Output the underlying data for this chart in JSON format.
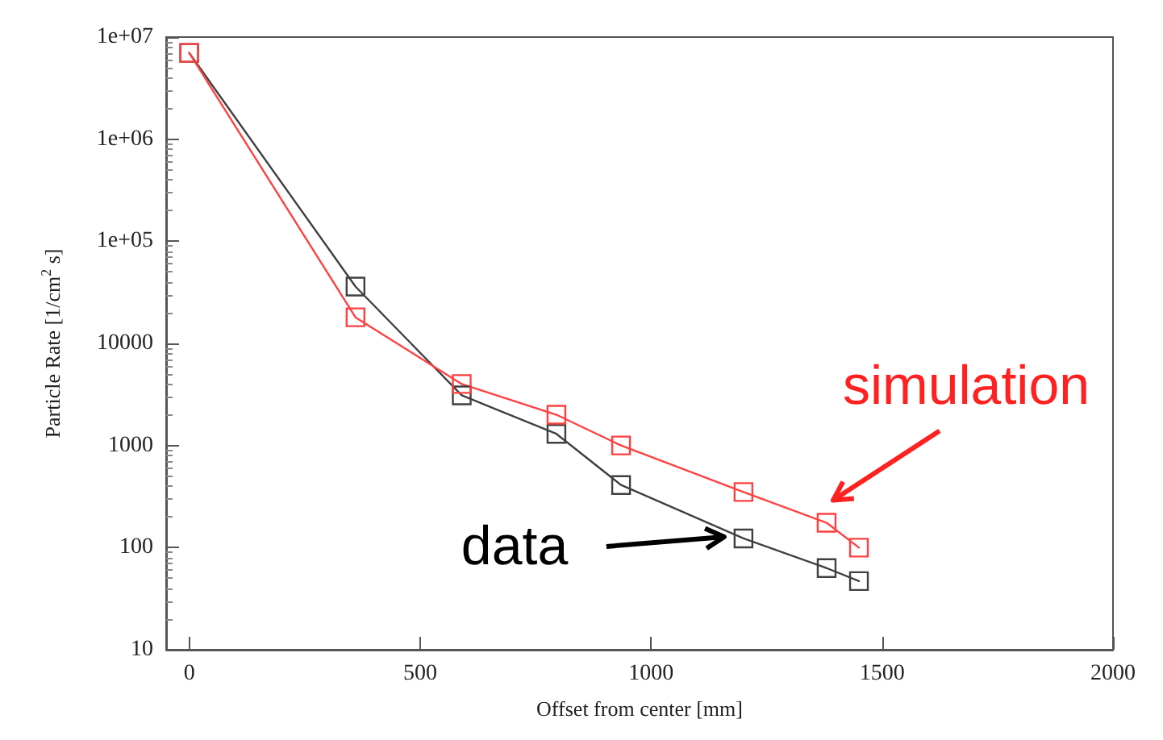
{
  "chart_data": {
    "type": "line",
    "xlabel": "Offset from center [mm]",
    "ylabel": "Particle Rate [1/cm$^{2}$ s]",
    "log": "y",
    "marker": "square",
    "line_style": "solid",
    "grid": false,
    "legend": false,
    "xlim": [
      -50,
      2000
    ],
    "xticks": [
      0,
      500,
      1000,
      1500,
      2000
    ],
    "ylim": [
      10,
      10000000
    ],
    "yticks": [
      10,
      100,
      1000,
      10000,
      {
        "value": 100000,
        "label": "1e+05"
      },
      {
        "value": 1000000,
        "label": "1e+06"
      },
      {
        "value": 10000000,
        "label": "1e+07"
      }
    ],
    "x": [
      0,
      360,
      590,
      795,
      935,
      1200,
      1380,
      1450
    ],
    "series": [
      {
        "name": "data",
        "color": "#404040",
        "values": [
          7000000,
          36000,
          3100,
          1300,
          410,
          123,
          63,
          47
        ]
      },
      {
        "name": "simulation",
        "color": "#ff4040",
        "values": [
          7000000,
          18000,
          4000,
          2000,
          1000,
          350,
          175,
          100
        ]
      }
    ]
  }
}
